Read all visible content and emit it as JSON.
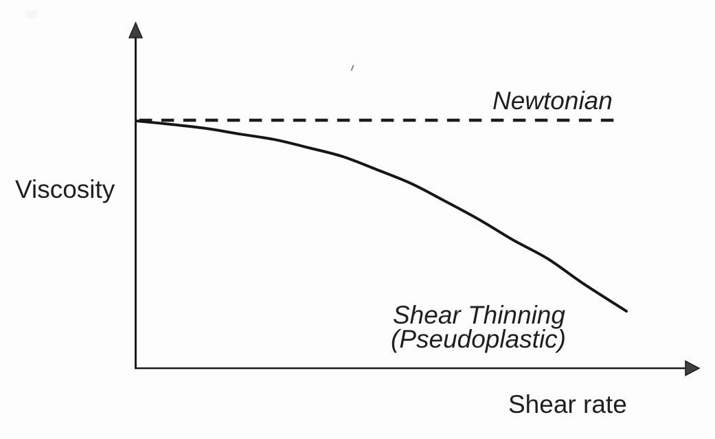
{
  "figure": {
    "background": "#fdfdfd",
    "ink_color": "#1c1c1c",
    "arrowhead_fill": "#3f3f3f"
  },
  "labels": {
    "y_axis": "Viscosity",
    "x_axis": "Shear rate",
    "newtonian": "Newtonian",
    "shear_thinning_line1": "Shear Thinning",
    "shear_thinning_line2": "(Pseudoplastic)"
  },
  "chart_data": {
    "type": "line",
    "title": "",
    "xlabel": "Shear rate",
    "ylabel": "Viscosity",
    "x_ticks": [],
    "y_ticks": [],
    "axis_arrows": true,
    "grid": false,
    "legend": "inline-annotations",
    "series": [
      {
        "name": "Newtonian",
        "line_style": "dashed",
        "x": [
          0.004,
          0.98
        ],
        "viscosity": [
          1.0,
          1.0
        ]
      },
      {
        "name": "Shear Thinning (Pseudoplastic)",
        "line_style": "solid",
        "x": [
          0.0,
          0.07,
          0.14,
          0.21,
          0.28,
          0.35,
          0.42,
          0.49,
          0.56,
          0.63,
          0.7,
          0.77,
          0.84,
          0.91,
          1.0
        ],
        "viscosity": [
          0.997,
          0.983,
          0.967,
          0.944,
          0.922,
          0.889,
          0.853,
          0.8,
          0.744,
          0.672,
          0.597,
          0.514,
          0.439,
          0.342,
          0.228
        ]
      }
    ]
  }
}
